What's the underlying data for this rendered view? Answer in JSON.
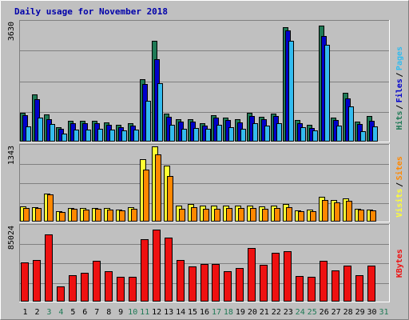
{
  "chart_data": {
    "type": "bar",
    "title": "Daily usage for November 2018",
    "categories": [
      "1",
      "2",
      "3",
      "4",
      "5",
      "6",
      "7",
      "8",
      "9",
      "10",
      "11",
      "12",
      "13",
      "14",
      "15",
      "16",
      "17",
      "18",
      "19",
      "20",
      "21",
      "22",
      "23",
      "24",
      "25",
      "26",
      "27",
      "28",
      "29",
      "30",
      "31"
    ],
    "weekend_days": [
      "3",
      "4",
      "10",
      "11",
      "17",
      "18",
      "24",
      "25",
      "31"
    ],
    "panels": [
      {
        "id": "top",
        "ymax_label": "3630",
        "ylim": [
          0,
          3630
        ],
        "series": [
          {
            "name": "Hits",
            "color": "#1f7a56",
            "values": [
              870,
              1430,
              820,
              450,
              640,
              640,
              630,
              580,
              510,
              560,
              1900,
              3070,
              850,
              690,
              690,
              570,
              810,
              730,
              670,
              870,
              760,
              860,
              3480,
              650,
              510,
              3540,
              740,
              1480,
              620,
              790,
              0
            ]
          },
          {
            "name": "Files",
            "color": "#0000cc",
            "values": [
              800,
              1280,
              690,
              380,
              560,
              560,
              560,
              500,
              450,
              490,
              1750,
              2520,
              760,
              620,
              620,
              490,
              720,
              650,
              590,
              770,
              690,
              770,
              3380,
              570,
              420,
              3220,
              660,
              1320,
              540,
              630,
              0
            ]
          },
          {
            "name": "Pages",
            "color": "#33bbee",
            "values": [
              470,
              730,
              540,
              250,
              370,
              370,
              390,
              360,
              350,
              370,
              1240,
              1770,
              500,
              390,
              410,
              390,
              520,
              430,
              390,
              570,
              480,
              560,
              3080,
              430,
              350,
              2950,
              480,
              1060,
              320,
              470,
              0
            ]
          }
        ]
      },
      {
        "id": "middle",
        "ymax_label": "1343",
        "ylim": [
          0,
          1343
        ],
        "series": [
          {
            "name": "Visits",
            "color": "#ffff33",
            "values": [
              270,
              260,
              500,
              180,
              250,
              240,
              250,
              240,
              210,
              260,
              1120,
              1340,
              1000,
              280,
              320,
              280,
              280,
              290,
              280,
              280,
              270,
              280,
              310,
              200,
              210,
              440,
              380,
              420,
              230,
              220,
              0
            ]
          },
          {
            "name": "Sites",
            "color": "#ff8800",
            "values": [
              240,
              240,
              490,
              170,
              230,
              220,
              230,
              220,
              200,
              230,
              930,
              1200,
              810,
              230,
              260,
              230,
              230,
              240,
              240,
              240,
              230,
              240,
              260,
              180,
              190,
              390,
              340,
              370,
              210,
              200,
              0
            ]
          }
        ]
      },
      {
        "id": "bottom",
        "ymax_label": "85024",
        "ylim": [
          0,
          85024
        ],
        "series": [
          {
            "name": "KBytes",
            "color": "#ee1111",
            "values": [
              44600,
              46700,
              75800,
              17200,
              29500,
              33000,
              45900,
              34100,
              28200,
              28000,
              70200,
              81500,
              72500,
              46700,
              39600,
              42700,
              42800,
              34100,
              37700,
              60500,
              41300,
              54900,
              56800,
              29200,
              27700,
              45900,
              35300,
              40700,
              30000,
              40700,
              0
            ]
          }
        ]
      }
    ],
    "legend_placement": "right-vertical"
  }
}
